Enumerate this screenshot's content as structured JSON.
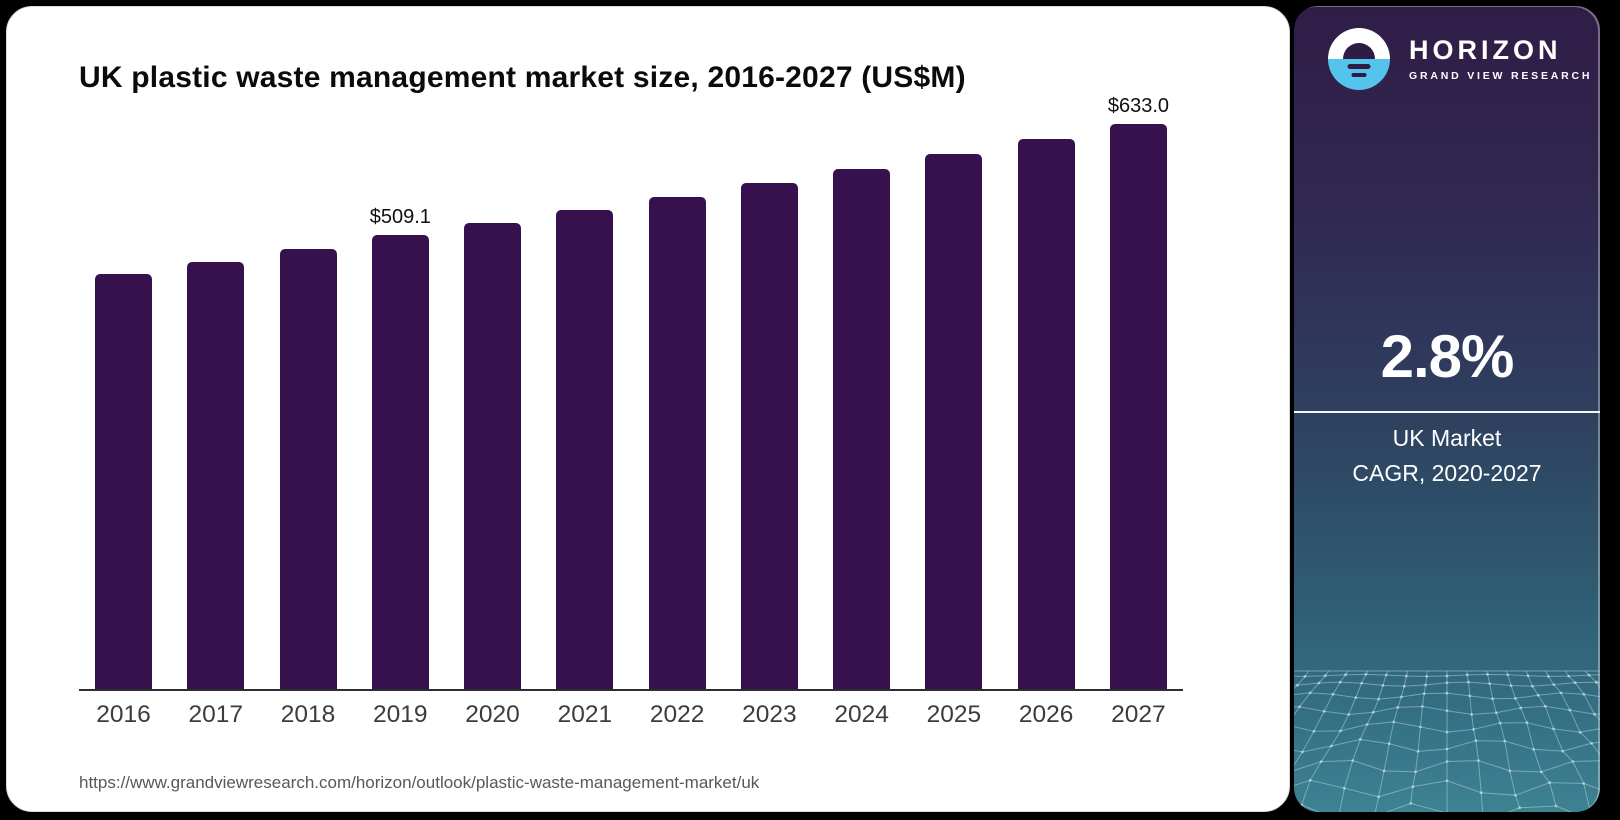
{
  "chart_data": {
    "type": "bar",
    "title": "UK plastic waste management market size, 2016-2027 (US$M)",
    "categories": [
      "2016",
      "2017",
      "2018",
      "2019",
      "2020",
      "2021",
      "2022",
      "2023",
      "2024",
      "2025",
      "2026",
      "2027"
    ],
    "values": [
      464.9,
      478.7,
      493.4,
      509.1,
      521.9,
      536.5,
      551.5,
      567.0,
      582.8,
      599.2,
      615.9,
      633.0
    ],
    "data_labels": [
      null,
      null,
      null,
      "$509.1",
      null,
      null,
      null,
      null,
      null,
      null,
      null,
      "$633.0"
    ],
    "unit": "US$M",
    "xlabel": "",
    "ylabel": "",
    "ylim": [
      0,
      633
    ],
    "grid": false,
    "legend": null,
    "bar_color": "#36114E",
    "axis_line_color": "#2e2e2e"
  },
  "source": {
    "url_text": "https://www.grandviewresearch.com/horizon/outlook/plastic-waste-management-market/uk"
  },
  "sidebar": {
    "brand": {
      "name": "HORIZON",
      "subtitle": "GRAND VIEW RESEARCH",
      "logo_icon": "horizon-sunset-icon",
      "logo_blue": "#55C4ED",
      "logo_dark": "#2F1C44"
    },
    "stat": {
      "value": "2.8%",
      "line1": "UK Market",
      "line2": "CAGR, 2020-2027"
    },
    "colors": {
      "gradient_top": "#2F1D46",
      "gradient_bottom": "#3E8292"
    }
  }
}
